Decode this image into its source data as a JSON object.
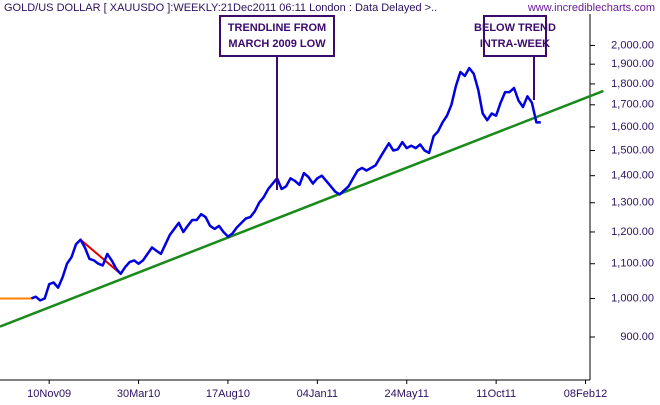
{
  "chart_data": {
    "type": "line",
    "title": "GOLD/US DOLLAR [ XAUUSDO ]:WEEKLY:21Dec2011 06:11 London : Data Delayed >..",
    "source": "www.incrediblecharts.com",
    "log_scale": true,
    "xlim": [
      -11,
      121
    ],
    "ylim": [
      800,
      2180
    ],
    "xticks": [
      {
        "value": 0,
        "label": "10Nov09"
      },
      {
        "value": 20,
        "label": "30Mar10"
      },
      {
        "value": 40,
        "label": "17Aug10"
      },
      {
        "value": 60,
        "label": "04Jan11"
      },
      {
        "value": 80,
        "label": "24May11"
      },
      {
        "value": 100,
        "label": "11Oct11"
      },
      {
        "value": 120,
        "label": "08Feb12"
      }
    ],
    "yticks": [
      {
        "value": 900,
        "label": "900.00"
      },
      {
        "value": 1000,
        "label": "1,000.00"
      },
      {
        "value": 1100,
        "label": "1,100.00"
      },
      {
        "value": 1200,
        "label": "1,200.00"
      },
      {
        "value": 1300,
        "label": "1,300.00"
      },
      {
        "value": 1400,
        "label": "1,400.00"
      },
      {
        "value": 1500,
        "label": "1,500.00"
      },
      {
        "value": 1600,
        "label": "1,600.00"
      },
      {
        "value": 1700,
        "label": "1,700.00"
      },
      {
        "value": 1800,
        "label": "1,800.00"
      },
      {
        "value": 1900,
        "label": "1,900.00"
      },
      {
        "value": 2000,
        "label": "2,000.00"
      }
    ],
    "series": [
      {
        "color": "#ff8000",
        "width": 2,
        "x": [
          -11,
          -4
        ],
        "values": [
          1000,
          1000
        ]
      },
      {
        "color": "#1a8a1a",
        "width": 2.5,
        "x": [
          -11,
          124
        ],
        "values": [
          926,
          1766
        ]
      },
      {
        "color": "#e00000",
        "width": 2,
        "x": [
          7,
          16
        ],
        "values": [
          1175,
          1070
        ]
      },
      {
        "color": "#0000e0",
        "width": 2.5,
        "x": [
          -4,
          -3,
          -2,
          -1,
          0,
          1,
          2,
          3,
          4,
          5,
          6,
          7,
          8,
          9,
          10,
          11,
          12,
          13,
          14,
          15,
          16,
          17,
          18,
          19,
          20,
          21,
          22,
          23,
          24,
          25,
          26,
          27,
          28,
          29,
          30,
          31,
          32,
          33,
          34,
          35,
          36,
          37,
          38,
          39,
          40,
          41,
          42,
          43,
          44,
          45,
          46,
          47,
          48,
          49,
          50,
          51,
          52,
          53,
          54,
          55,
          56,
          57,
          58,
          59,
          60,
          61,
          62,
          63,
          64,
          65,
          66,
          67,
          68,
          69,
          70,
          71,
          72,
          73,
          74,
          75,
          76,
          77,
          78,
          79,
          80,
          81,
          82,
          83,
          84,
          85,
          86,
          87,
          88,
          89,
          90,
          91,
          92,
          93,
          94,
          95,
          96,
          97,
          98,
          99,
          100,
          101,
          102,
          103,
          104,
          105,
          106,
          107,
          108,
          109,
          110
        ],
        "values": [
          1000,
          1005,
          995,
          1000,
          1040,
          1045,
          1030,
          1060,
          1100,
          1120,
          1160,
          1175,
          1150,
          1115,
          1110,
          1100,
          1095,
          1130,
          1110,
          1085,
          1070,
          1090,
          1105,
          1110,
          1100,
          1110,
          1130,
          1150,
          1140,
          1130,
          1160,
          1190,
          1210,
          1230,
          1200,
          1220,
          1240,
          1240,
          1260,
          1250,
          1220,
          1210,
          1220,
          1200,
          1185,
          1195,
          1215,
          1230,
          1245,
          1250,
          1270,
          1300,
          1320,
          1350,
          1370,
          1390,
          1350,
          1360,
          1390,
          1380,
          1365,
          1410,
          1395,
          1370,
          1390,
          1400,
          1380,
          1360,
          1340,
          1330,
          1345,
          1360,
          1390,
          1420,
          1430,
          1420,
          1430,
          1440,
          1470,
          1500,
          1530,
          1500,
          1505,
          1535,
          1510,
          1520,
          1510,
          1525,
          1500,
          1490,
          1560,
          1580,
          1620,
          1650,
          1700,
          1790,
          1860,
          1840,
          1880,
          1850,
          1770,
          1660,
          1630,
          1660,
          1650,
          1710,
          1760,
          1760,
          1780,
          1720,
          1690,
          1740,
          1710,
          1620,
          1620
        ]
      }
    ],
    "annotations": [
      {
        "lines": [
          "TRENDLINE FROM",
          "MARCH 2009 LOW"
        ]
      },
      {
        "lines": [
          "BELOW TREND",
          "INTRA-WEEK"
        ]
      }
    ]
  }
}
